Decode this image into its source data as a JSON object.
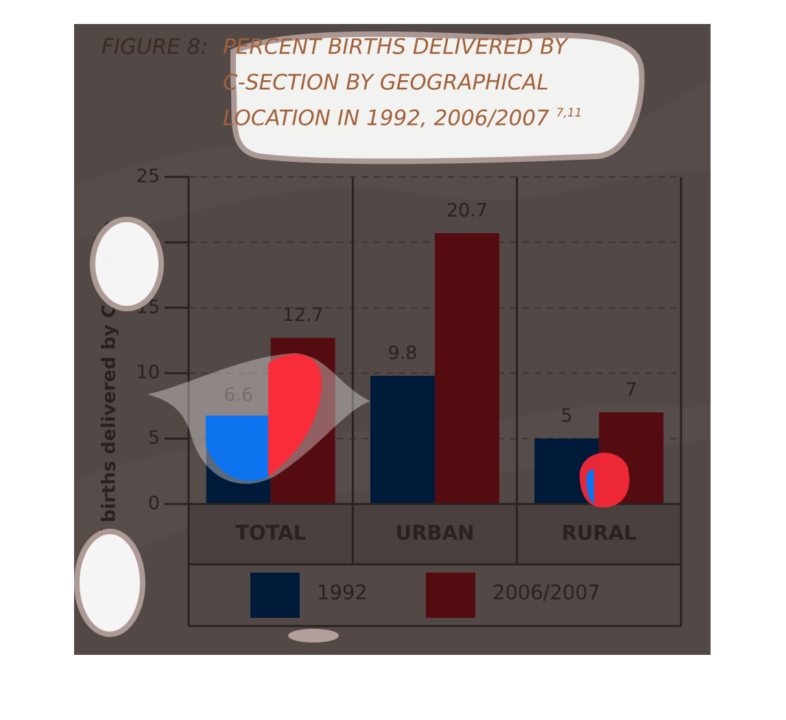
{
  "chart_data": {
    "type": "bar",
    "title_label": "FIGURE 8:",
    "title": [
      "PERCENT BIRTHS DELIVERED BY",
      "C-SECTION BY GEOGRAPHICAL",
      "LOCATION IN 1992, 2006/2007"
    ],
    "title_superscript": "7,11",
    "y_label": "% of births delivered by C-section",
    "categories": [
      "TOTAL",
      "URBAN",
      "RURAL"
    ],
    "series": [
      {
        "name": "1992",
        "color": "#001a3a",
        "values": [
          6.6,
          9.8,
          5
        ]
      },
      {
        "name": "2006/2007",
        "color": "#550c10",
        "values": [
          12.7,
          20.7,
          7
        ]
      }
    ],
    "ylim": [
      0,
      25
    ],
    "yticks": [
      0,
      5,
      10,
      15,
      20,
      25
    ],
    "grid": true,
    "legend": "bottom"
  }
}
